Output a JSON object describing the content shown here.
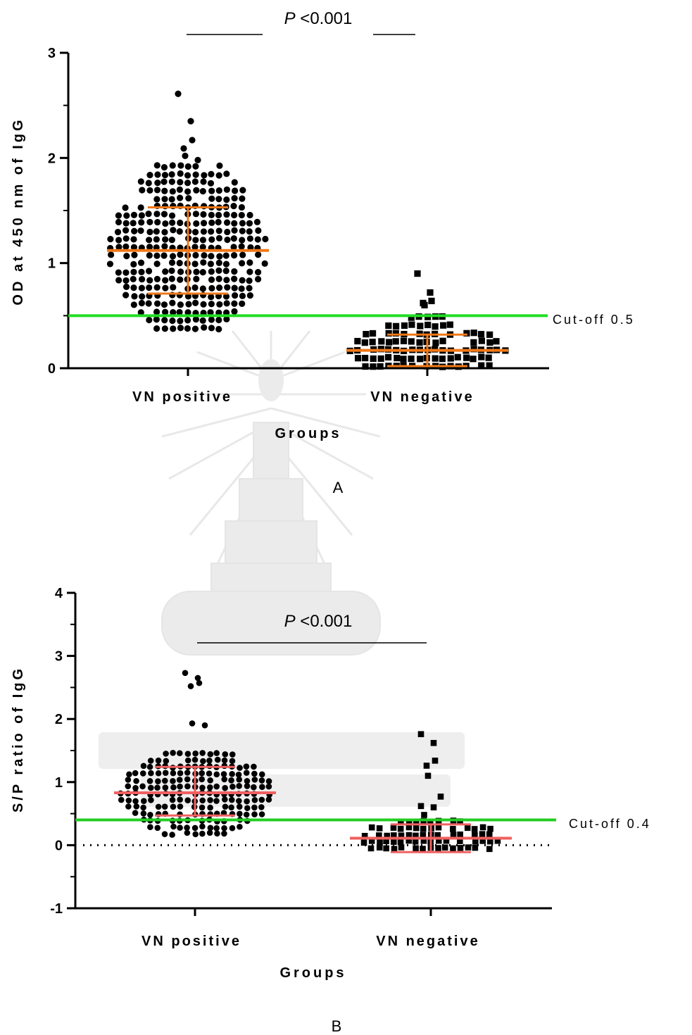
{
  "chart_data": [
    {
      "type": "scatter",
      "panel_label": "A",
      "ylabel": "OD at 450 nm of IgG",
      "xlabel": "Groups",
      "ylim": [
        0,
        3
      ],
      "yticks": [
        0,
        1,
        2,
        3
      ],
      "categories": [
        "VN positive",
        "VN negative"
      ],
      "significance": {
        "p_italic": "P",
        "p_value": "<0.001"
      },
      "cutoff": {
        "value": 0.5,
        "label": "Cut-off 0.5",
        "color": "#22dd22"
      },
      "summary_color": "#f07818",
      "series": [
        {
          "category": "VN positive",
          "marker": "circle",
          "mean": 1.12,
          "sd_low": 0.71,
          "sd_high": 1.53,
          "n": 290,
          "ymin": 0.38,
          "ymax": 1.95,
          "outliers": [
            2.61,
            2.35,
            2.17,
            2.09,
            2.02,
            1.98
          ]
        },
        {
          "category": "VN negative",
          "marker": "square",
          "mean": 0.17,
          "sd_low": 0.02,
          "sd_high": 0.32,
          "n": 420,
          "ymin": 0.02,
          "ymax": 0.55,
          "outliers": [
            0.9,
            0.72,
            0.64,
            0.62,
            0.6
          ]
        }
      ]
    },
    {
      "type": "scatter",
      "panel_label": "B",
      "ylabel": "S/P ratio of IgG",
      "xlabel": "Groups",
      "ylim": [
        -1,
        4
      ],
      "yticks": [
        -1,
        0,
        1,
        2,
        3,
        4
      ],
      "categories": [
        "VN positive",
        "VN negative"
      ],
      "significance": {
        "p_italic": "P",
        "p_value": "<0.001"
      },
      "cutoff": {
        "value": 0.4,
        "label": "Cut-off 0.4",
        "color": "#22cc22"
      },
      "zero_line": 0,
      "summary_color": "#f06060",
      "series": [
        {
          "category": "VN positive",
          "marker": "circle",
          "mean": 0.83,
          "sd_low": 0.47,
          "sd_high": 1.24,
          "n": 330,
          "ymin": 0.18,
          "ymax": 1.5,
          "outliers": [
            2.73,
            2.65,
            2.57,
            2.52,
            1.93,
            1.9
          ]
        },
        {
          "category": "VN negative",
          "marker": "square",
          "mean": 0.11,
          "sd_low": -0.11,
          "sd_high": 0.33,
          "n": 480,
          "ymin": -0.05,
          "ymax": 0.5,
          "outliers": [
            1.76,
            1.62,
            1.34,
            1.26,
            1.1,
            0.77,
            0.62,
            0.6
          ]
        }
      ]
    }
  ]
}
